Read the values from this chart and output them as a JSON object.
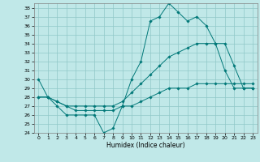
{
  "xlabel": "Humidex (Indice chaleur)",
  "background_color": "#c0e8e8",
  "grid_color": "#90c8c8",
  "line_color": "#007878",
  "xlim": [
    -0.5,
    23.5
  ],
  "ylim": [
    24,
    38.5
  ],
  "xticks": [
    0,
    1,
    2,
    3,
    4,
    5,
    6,
    7,
    8,
    9,
    10,
    11,
    12,
    13,
    14,
    15,
    16,
    17,
    18,
    19,
    20,
    21,
    22,
    23
  ],
  "yticks": [
    24,
    25,
    26,
    27,
    28,
    29,
    30,
    31,
    32,
    33,
    34,
    35,
    36,
    37,
    38
  ],
  "line1_x": [
    0,
    1,
    2,
    3,
    4,
    5,
    6,
    7,
    8,
    9,
    10,
    11,
    12,
    13,
    14,
    15,
    16,
    17,
    18,
    19,
    20,
    21,
    22,
    23
  ],
  "line1_y": [
    30,
    28,
    27,
    26,
    26,
    26,
    26,
    24,
    24.5,
    27,
    30,
    32,
    36.5,
    37,
    38.5,
    37.5,
    36.5,
    37,
    36,
    34,
    31,
    29,
    29,
    29
  ],
  "line2_x": [
    0,
    1,
    2,
    3,
    4,
    5,
    6,
    7,
    8,
    9,
    10,
    11,
    12,
    13,
    14,
    15,
    16,
    17,
    18,
    19,
    20,
    21,
    22,
    23
  ],
  "line2_y": [
    28,
    28,
    27.5,
    27,
    27,
    27,
    27,
    27,
    27,
    27.5,
    28.5,
    29.5,
    30.5,
    31.5,
    32.5,
    33,
    33.5,
    34,
    34,
    34,
    34,
    31.5,
    29,
    29
  ],
  "line3_x": [
    0,
    1,
    2,
    3,
    4,
    5,
    6,
    7,
    8,
    9,
    10,
    11,
    12,
    13,
    14,
    15,
    16,
    17,
    18,
    19,
    20,
    21,
    22,
    23
  ],
  "line3_y": [
    28,
    28,
    27.5,
    27,
    26.5,
    26.5,
    26.5,
    26.5,
    26.5,
    27,
    27,
    27.5,
    28,
    28.5,
    29,
    29,
    29,
    29.5,
    29.5,
    29.5,
    29.5,
    29.5,
    29.5,
    29.5
  ]
}
